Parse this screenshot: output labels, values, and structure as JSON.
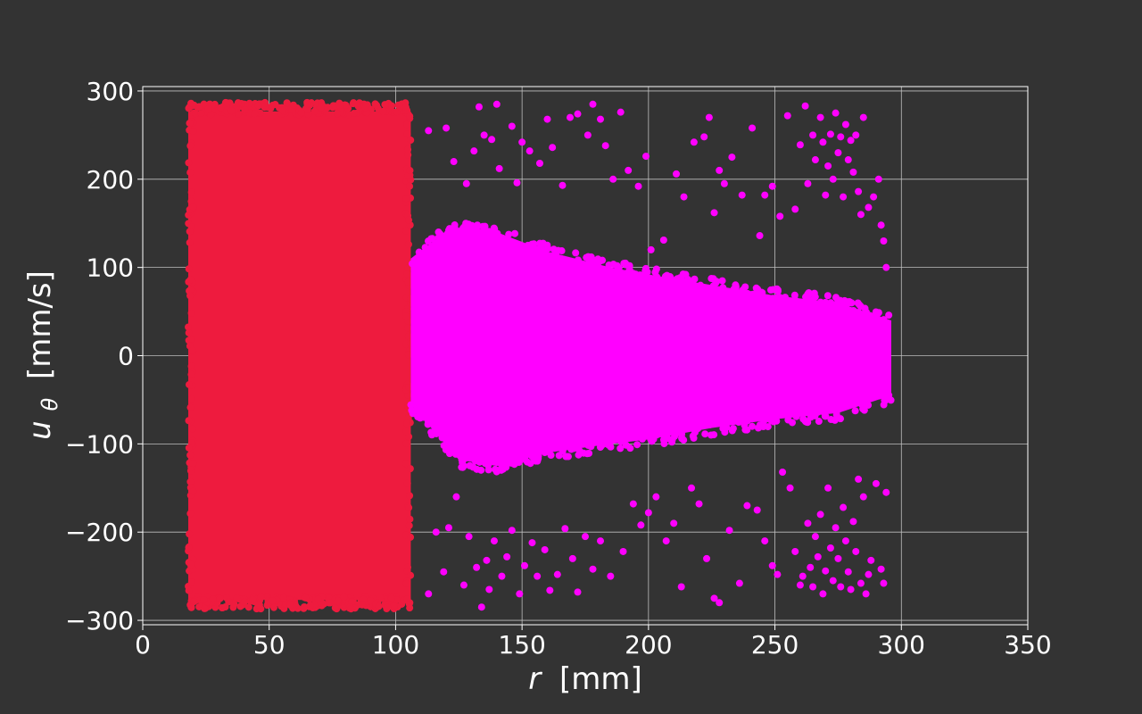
{
  "chart_data": {
    "type": "scatter",
    "title": "",
    "xlabel": {
      "var": "r",
      "unit": "[mm]"
    },
    "ylabel": {
      "var": "u",
      "sub": "θ",
      "unit": "[mm/s]"
    },
    "xlim": [
      0,
      350
    ],
    "ylim": [
      -305,
      305
    ],
    "xticks": [
      0,
      50,
      100,
      150,
      200,
      250,
      300,
      350
    ],
    "yticks": [
      -300,
      -200,
      -100,
      0,
      100,
      200,
      300
    ],
    "xtick_labels": [
      "0",
      "50",
      "100",
      "150",
      "200",
      "250",
      "300",
      "350"
    ],
    "ytick_labels": [
      "−300",
      "−200",
      "−100",
      "0",
      "100",
      "200",
      "300"
    ],
    "grid": true,
    "legend": "none",
    "colors": {
      "background": "#333333",
      "axes_edge": "#ffffff",
      "grid": "#bfbfbf",
      "text": "#ffffff"
    },
    "series": [
      {
        "color": "#ee1b3e",
        "regions": [
          {
            "x": [
              18,
              106
            ],
            "y": [
              -287,
              287
            ],
            "dense": true
          }
        ]
      },
      {
        "color": "#ff00ff",
        "dense_band": {
          "x_start": 106,
          "x_end": 296,
          "upper": [
            [
              106,
              110
            ],
            [
              115,
              130
            ],
            [
              125,
              145
            ],
            [
              140,
              140
            ],
            [
              160,
              118
            ],
            [
              185,
              100
            ],
            [
              200,
              92
            ],
            [
              225,
              80
            ],
            [
              250,
              68
            ],
            [
              275,
              60
            ],
            [
              296,
              40
            ]
          ],
          "lower": [
            [
              106,
              -55
            ],
            [
              115,
              -85
            ],
            [
              125,
              -118
            ],
            [
              140,
              -125
            ],
            [
              160,
              -110
            ],
            [
              185,
              -100
            ],
            [
              200,
              -95
            ],
            [
              225,
              -82
            ],
            [
              250,
              -72
            ],
            [
              275,
              -65
            ],
            [
              296,
              -45
            ]
          ]
        },
        "sparse_points": [
          [
            113,
            255
          ],
          [
            120,
            258
          ],
          [
            123,
            220
          ],
          [
            128,
            195
          ],
          [
            131,
            232
          ],
          [
            133,
            282
          ],
          [
            135,
            250
          ],
          [
            138,
            245
          ],
          [
            140,
            285
          ],
          [
            141,
            212
          ],
          [
            146,
            260
          ],
          [
            148,
            196
          ],
          [
            150,
            242
          ],
          [
            153,
            232
          ],
          [
            157,
            218
          ],
          [
            160,
            268
          ],
          [
            162,
            236
          ],
          [
            166,
            193
          ],
          [
            169,
            270
          ],
          [
            172,
            274
          ],
          [
            176,
            250
          ],
          [
            178,
            285
          ],
          [
            181,
            268
          ],
          [
            183,
            238
          ],
          [
            186,
            200
          ],
          [
            189,
            276
          ],
          [
            192,
            210
          ],
          [
            196,
            192
          ],
          [
            199,
            226
          ],
          [
            201,
            120
          ],
          [
            206,
            131
          ],
          [
            211,
            206
          ],
          [
            214,
            180
          ],
          [
            218,
            242
          ],
          [
            222,
            248
          ],
          [
            224,
            270
          ],
          [
            226,
            162
          ],
          [
            228,
            210
          ],
          [
            230,
            195
          ],
          [
            233,
            225
          ],
          [
            237,
            182
          ],
          [
            241,
            258
          ],
          [
            244,
            136
          ],
          [
            246,
            182
          ],
          [
            249,
            192
          ],
          [
            252,
            158
          ],
          [
            255,
            272
          ],
          [
            258,
            166
          ],
          [
            260,
            239
          ],
          [
            262,
            283
          ],
          [
            263,
            195
          ],
          [
            265,
            250
          ],
          [
            266,
            222
          ],
          [
            268,
            270
          ],
          [
            269,
            242
          ],
          [
            270,
            182
          ],
          [
            271,
            215
          ],
          [
            272,
            251
          ],
          [
            273,
            200
          ],
          [
            274,
            275
          ],
          [
            275,
            230
          ],
          [
            276,
            248
          ],
          [
            277,
            180
          ],
          [
            278,
            262
          ],
          [
            279,
            222
          ],
          [
            280,
            244
          ],
          [
            281,
            208
          ],
          [
            282,
            250
          ],
          [
            283,
            186
          ],
          [
            284,
            160
          ],
          [
            285,
            270
          ],
          [
            287,
            168
          ],
          [
            289,
            180
          ],
          [
            291,
            200
          ],
          [
            292,
            148
          ],
          [
            293,
            130
          ],
          [
            294,
            100
          ],
          [
            113,
            -270
          ],
          [
            116,
            -200
          ],
          [
            119,
            -245
          ],
          [
            121,
            -195
          ],
          [
            124,
            -160
          ],
          [
            127,
            -260
          ],
          [
            129,
            -205
          ],
          [
            132,
            -240
          ],
          [
            134,
            -285
          ],
          [
            136,
            -232
          ],
          [
            137,
            -265
          ],
          [
            139,
            -210
          ],
          [
            142,
            -250
          ],
          [
            144,
            -228
          ],
          [
            146,
            -198
          ],
          [
            149,
            -270
          ],
          [
            151,
            -238
          ],
          [
            154,
            -212
          ],
          [
            156,
            -250
          ],
          [
            159,
            -220
          ],
          [
            161,
            -266
          ],
          [
            164,
            -248
          ],
          [
            167,
            -196
          ],
          [
            170,
            -230
          ],
          [
            172,
            -268
          ],
          [
            175,
            -205
          ],
          [
            178,
            -242
          ],
          [
            181,
            -210
          ],
          [
            185,
            -250
          ],
          [
            190,
            -222
          ],
          [
            194,
            -168
          ],
          [
            197,
            -192
          ],
          [
            200,
            -178
          ],
          [
            203,
            -160
          ],
          [
            207,
            -210
          ],
          [
            210,
            -190
          ],
          [
            213,
            -262
          ],
          [
            217,
            -150
          ],
          [
            220,
            -168
          ],
          [
            223,
            -230
          ],
          [
            226,
            -275
          ],
          [
            228,
            -280
          ],
          [
            232,
            -198
          ],
          [
            236,
            -258
          ],
          [
            239,
            -170
          ],
          [
            243,
            -175
          ],
          [
            246,
            -210
          ],
          [
            249,
            -238
          ],
          [
            251,
            -248
          ],
          [
            253,
            -132
          ],
          [
            256,
            -150
          ],
          [
            258,
            -222
          ],
          [
            260,
            -260
          ],
          [
            261,
            -250
          ],
          [
            263,
            -190
          ],
          [
            264,
            -240
          ],
          [
            265,
            -262
          ],
          [
            266,
            -205
          ],
          [
            267,
            -228
          ],
          [
            268,
            -180
          ],
          [
            269,
            -270
          ],
          [
            270,
            -244
          ],
          [
            271,
            -150
          ],
          [
            272,
            -218
          ],
          [
            273,
            -255
          ],
          [
            274,
            -195
          ],
          [
            275,
            -230
          ],
          [
            276,
            -262
          ],
          [
            277,
            -172
          ],
          [
            278,
            -210
          ],
          [
            279,
            -245
          ],
          [
            280,
            -265
          ],
          [
            281,
            -188
          ],
          [
            282,
            -222
          ],
          [
            283,
            -140
          ],
          [
            284,
            -258
          ],
          [
            285,
            -160
          ],
          [
            286,
            -270
          ],
          [
            287,
            -248
          ],
          [
            288,
            -232
          ],
          [
            290,
            -145
          ],
          [
            292,
            -242
          ],
          [
            293,
            -258
          ],
          [
            294,
            -155
          ]
        ]
      }
    ]
  }
}
